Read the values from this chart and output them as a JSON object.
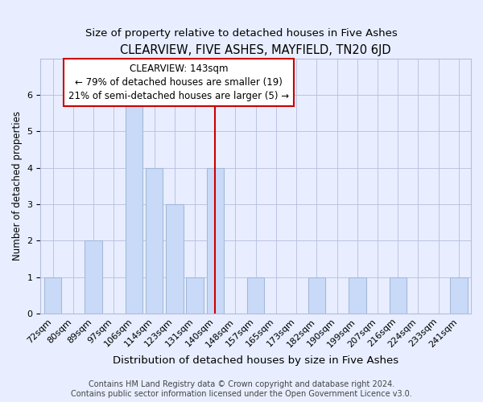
{
  "title": "CLEARVIEW, FIVE ASHES, MAYFIELD, TN20 6JD",
  "subtitle": "Size of property relative to detached houses in Five Ashes",
  "xlabel_bottom": "Distribution of detached houses by size in Five Ashes",
  "ylabel": "Number of detached properties",
  "categories": [
    "72sqm",
    "80sqm",
    "89sqm",
    "97sqm",
    "106sqm",
    "114sqm",
    "123sqm",
    "131sqm",
    "140sqm",
    "148sqm",
    "157sqm",
    "165sqm",
    "173sqm",
    "182sqm",
    "190sqm",
    "199sqm",
    "207sqm",
    "216sqm",
    "224sqm",
    "233sqm",
    "241sqm"
  ],
  "values": [
    1,
    0,
    2,
    0,
    6,
    4,
    3,
    1,
    4,
    0,
    1,
    0,
    0,
    1,
    0,
    1,
    0,
    1,
    0,
    0,
    1
  ],
  "bar_color": "#c9daf8",
  "bar_edge_color": "#a4b8d8",
  "highlight_index": 8,
  "highlight_line_color": "#cc0000",
  "annotation_text": "CLEARVIEW: 143sqm\n← 79% of detached houses are smaller (19)\n21% of semi-detached houses are larger (5) →",
  "annotation_box_color": "#ffffff",
  "annotation_box_edge_color": "#cc0000",
  "ylim": [
    0,
    7
  ],
  "yticks": [
    0,
    1,
    2,
    3,
    4,
    5,
    6,
    7
  ],
  "footnote": "Contains HM Land Registry data © Crown copyright and database right 2024.\nContains public sector information licensed under the Open Government Licence v3.0.",
  "background_color": "#e8eeff",
  "plot_background_color": "#e8eeff",
  "title_fontsize": 10.5,
  "subtitle_fontsize": 9.5,
  "tick_fontsize": 8,
  "ylabel_fontsize": 8.5,
  "annotation_fontsize": 8.5,
  "footnote_fontsize": 7,
  "xlabel_fontsize": 9.5
}
